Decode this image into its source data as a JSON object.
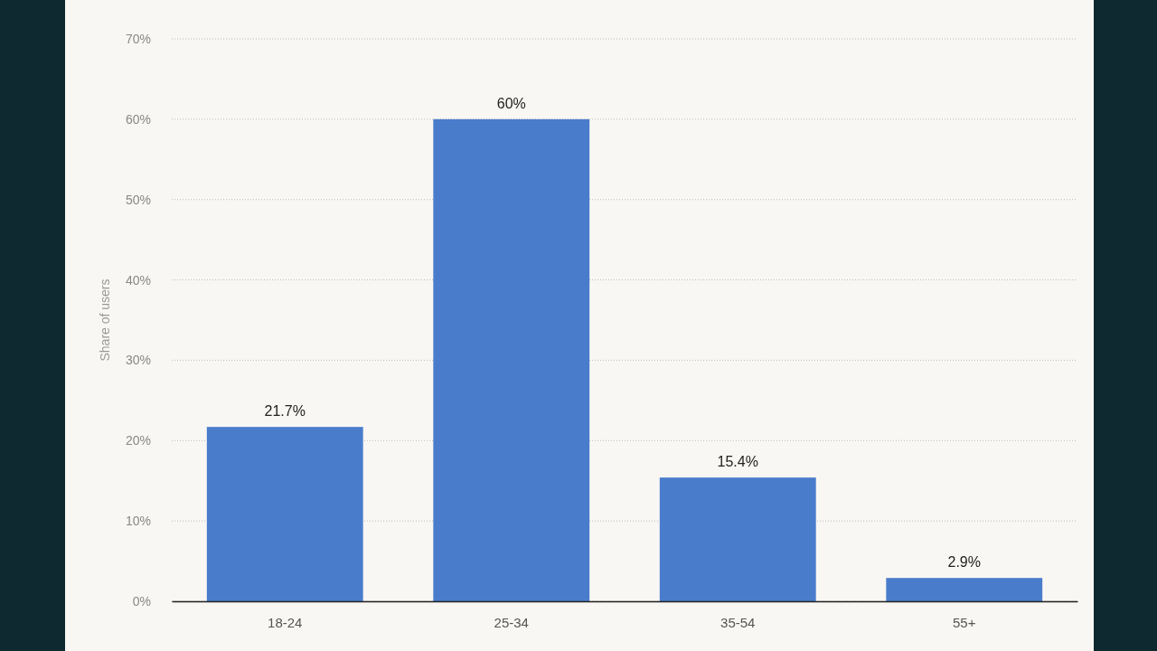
{
  "chart_data": {
    "type": "bar",
    "ylabel": "Share of users",
    "categories": [
      "18-24",
      "25-34",
      "35-54",
      "55+"
    ],
    "values": [
      21.7,
      60,
      15.4,
      2.9
    ],
    "value_labels": [
      "21.7%",
      "60%",
      "15.4%",
      "2.9%"
    ],
    "color": "#4a7ccc",
    "ylim": [
      0,
      70
    ],
    "yticks": [
      {
        "value": 0,
        "label": "0%"
      },
      {
        "value": 10,
        "label": "10%"
      },
      {
        "value": 20,
        "label": "20%"
      },
      {
        "value": 30,
        "label": "30%"
      },
      {
        "value": 40,
        "label": "40%"
      },
      {
        "value": 50,
        "label": "50%"
      },
      {
        "value": 60,
        "label": "60%"
      },
      {
        "value": 70,
        "label": "70%"
      }
    ],
    "grid": "y"
  }
}
